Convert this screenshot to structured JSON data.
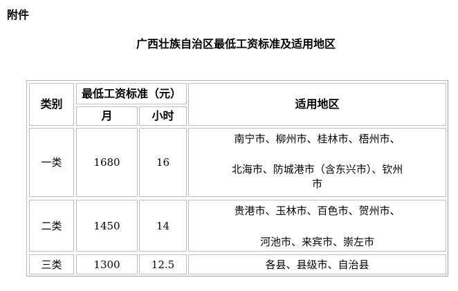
{
  "attachment_label": "附件",
  "title": "广西壮族自治区最低工资标准及适用地区",
  "table": {
    "headers": {
      "category": "类别",
      "min_wage": "最低工资标准（元）",
      "month": "月",
      "hour": "小时",
      "region": "适用地区"
    },
    "rows": [
      {
        "category": "一类",
        "month": "1680",
        "hour": "16",
        "region_lines": [
          "南宁市、柳州市、桂林市、梧州市、",
          "北海市、防城港市（含东兴市）、钦州",
          "市"
        ]
      },
      {
        "category": "二类",
        "month": "1450",
        "hour": "14",
        "region_lines": [
          "贵港市、玉林市、百色市、贺州市、",
          "河池市、来宾市、崇左市"
        ]
      },
      {
        "category": "三类",
        "month": "1300",
        "hour": "12.5",
        "region_lines": [
          "各县、县级市、自治县"
        ]
      }
    ]
  }
}
